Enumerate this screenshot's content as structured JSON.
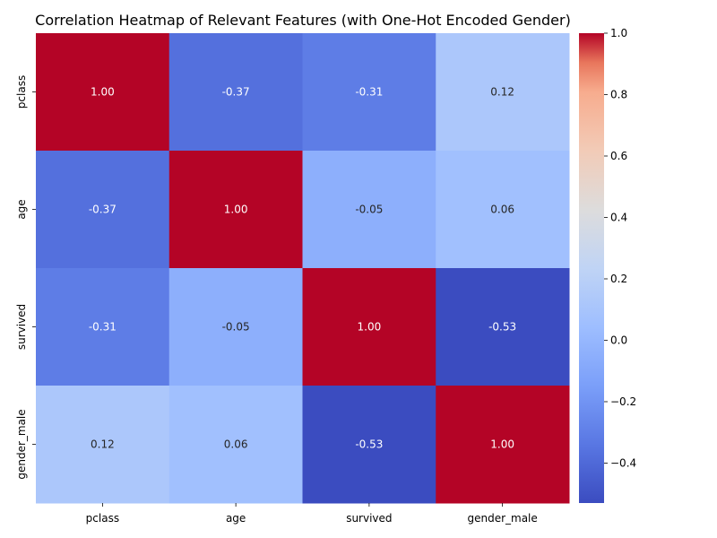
{
  "chart_data": {
    "type": "heatmap",
    "title": "Correlation Heatmap of Relevant Features (with One-Hot Encoded Gender)",
    "x_categories": [
      "pclass",
      "age",
      "survived",
      "gender_male"
    ],
    "y_categories": [
      "pclass",
      "age",
      "survived",
      "gender_male"
    ],
    "values": [
      [
        1.0,
        -0.37,
        -0.31,
        0.12
      ],
      [
        -0.37,
        1.0,
        -0.05,
        0.06
      ],
      [
        -0.31,
        -0.05,
        1.0,
        -0.53
      ],
      [
        0.12,
        0.06,
        -0.53,
        1.0
      ]
    ],
    "value_labels": [
      [
        "1.00",
        "-0.37",
        "-0.31",
        "0.12"
      ],
      [
        "-0.37",
        "1.00",
        "-0.05",
        "0.06"
      ],
      [
        "-0.31",
        "-0.05",
        "1.00",
        "-0.53"
      ],
      [
        "0.12",
        "0.06",
        "-0.53",
        "1.00"
      ]
    ],
    "colormap": "coolwarm",
    "color_range": [
      -0.53,
      1.0
    ],
    "colorbar_ticks": [
      1.0,
      0.8,
      0.6,
      0.4,
      0.2,
      0.0,
      -0.2,
      -0.4
    ],
    "colorbar_tick_labels": [
      "1.0",
      "0.8",
      "0.6",
      "0.4",
      "0.2",
      "0.0",
      "−0.2",
      "−0.4"
    ],
    "xlabel": "",
    "ylabel": "",
    "legend": "colorbar-right"
  }
}
